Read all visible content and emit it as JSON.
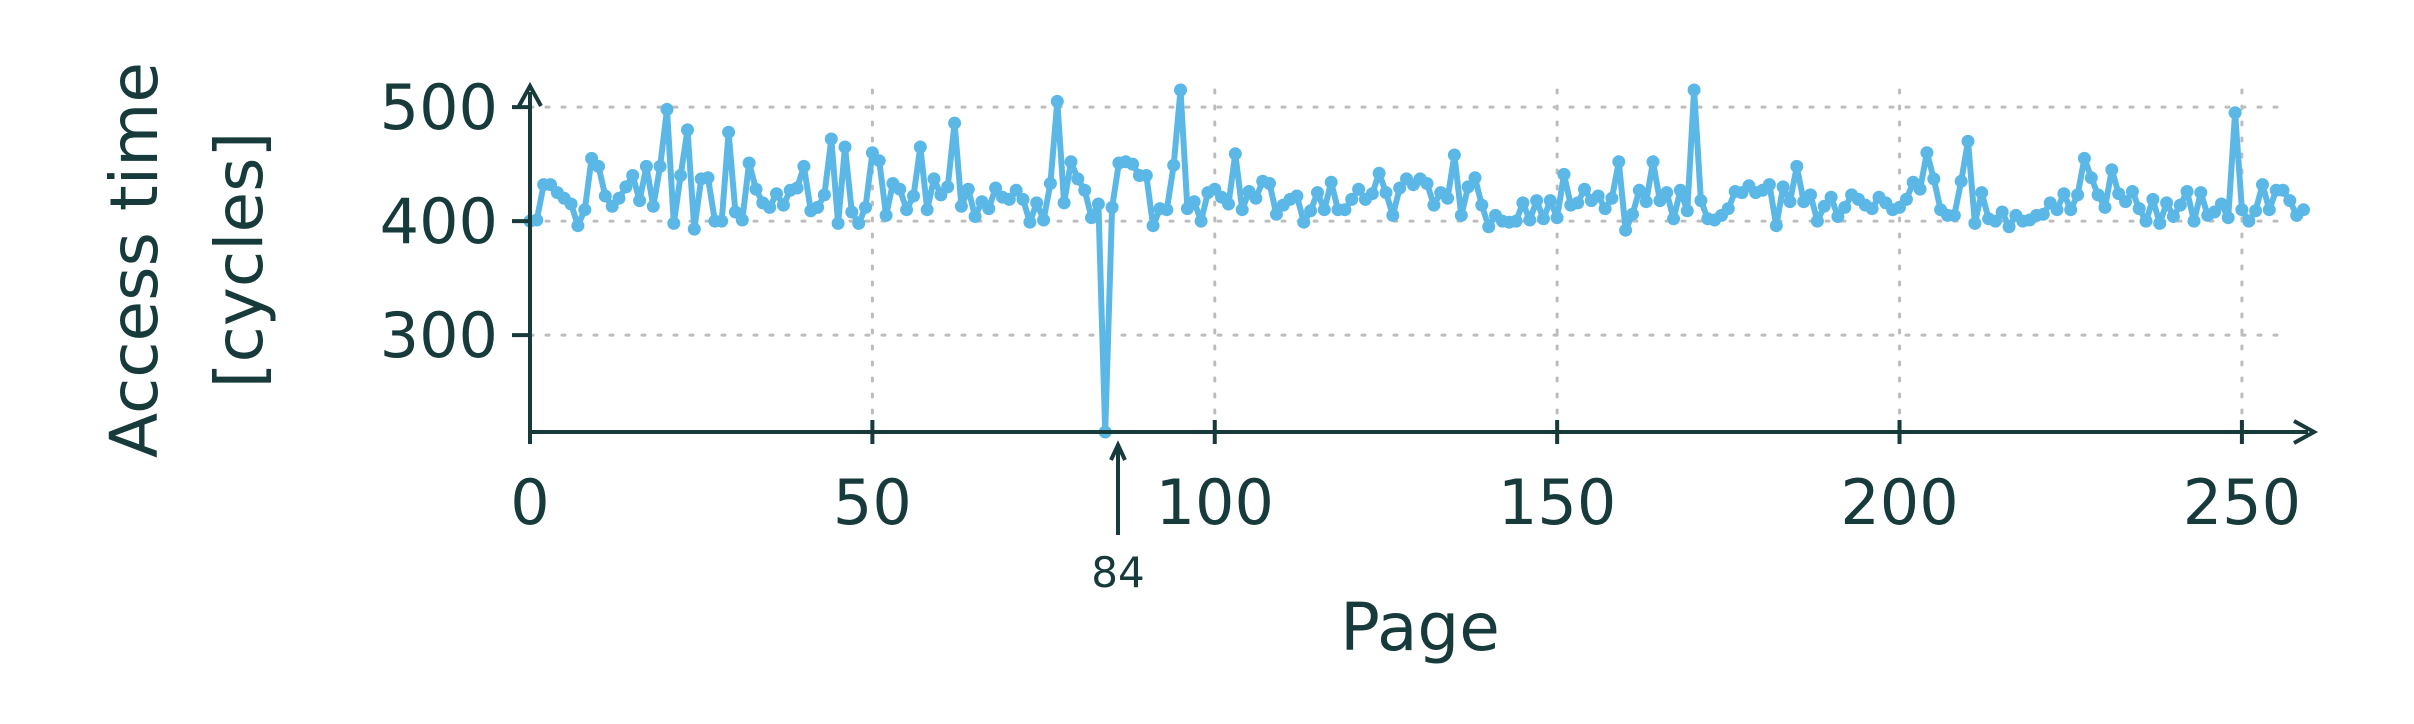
{
  "chart_data": {
    "type": "line",
    "xlabel": "Page",
    "ylabel_lines": [
      "Access time",
      "[cycles]"
    ],
    "xlim": [
      0,
      256
    ],
    "ylim": [
      215,
      515
    ],
    "x_ticks": [
      "0",
      "50",
      "100",
      "150",
      "200",
      "250"
    ],
    "y_ticks": [
      "300",
      "400",
      "500"
    ],
    "grid": true,
    "series_color": "#5bb8e6",
    "axis_color": "#173a3a",
    "annotation": {
      "x": 84,
      "label": "84"
    },
    "series": [
      {
        "values": [
          400,
          401,
          432,
          432,
          425,
          420,
          415,
          396,
          410,
          455,
          448,
          422,
          413,
          420,
          430,
          440,
          418,
          448,
          413,
          448,
          498,
          398,
          440,
          480,
          393,
          437,
          438,
          400,
          400,
          478,
          408,
          401,
          451,
          428,
          416,
          412,
          424,
          414,
          427,
          429,
          448,
          409,
          412,
          423,
          472,
          398,
          465,
          408,
          398,
          412,
          460,
          453,
          405,
          433,
          428,
          410,
          422,
          465,
          410,
          437,
          423,
          430,
          486,
          413,
          428,
          404,
          417,
          411,
          429,
          421,
          419,
          427,
          419,
          399,
          416,
          401,
          433,
          505,
          416,
          452,
          437,
          427,
          403,
          415,
          215,
          412,
          451,
          452,
          450,
          440,
          440,
          396,
          411,
          410,
          449,
          515,
          411,
          417,
          400,
          425,
          428,
          421,
          415,
          459,
          410,
          426,
          420,
          435,
          433,
          406,
          414,
          419,
          422,
          399,
          409,
          425,
          410,
          434,
          410,
          410,
          419,
          428,
          419,
          424,
          442,
          425,
          405,
          429,
          437,
          432,
          437,
          433,
          414,
          425,
          420,
          458,
          405,
          430,
          438,
          414,
          395,
          405,
          400,
          399,
          400,
          416,
          401,
          418,
          402,
          418,
          403,
          441,
          414,
          416,
          428,
          418,
          422,
          411,
          420,
          452,
          392,
          406,
          427,
          417,
          452,
          418,
          425,
          402,
          427,
          409,
          515,
          418,
          402,
          401,
          405,
          411,
          426,
          425,
          431,
          425,
          427,
          432,
          396,
          430,
          417,
          448,
          417,
          423,
          400,
          413,
          421,
          404,
          412,
          423,
          419,
          414,
          411,
          421,
          416,
          410,
          412,
          419,
          434,
          428,
          460,
          437,
          410,
          405,
          405,
          435,
          470,
          398,
          425,
          402,
          400,
          408,
          395,
          405,
          400,
          401,
          405,
          406,
          416,
          410,
          424,
          410,
          423,
          455,
          438,
          423,
          412,
          445,
          424,
          417,
          426,
          411,
          400,
          419,
          398,
          416,
          404,
          414,
          426,
          400,
          425,
          405,
          408,
          415,
          403,
          495,
          410,
          400,
          409,
          432,
          410,
          427,
          427,
          418,
          405,
          410
        ]
      }
    ]
  }
}
